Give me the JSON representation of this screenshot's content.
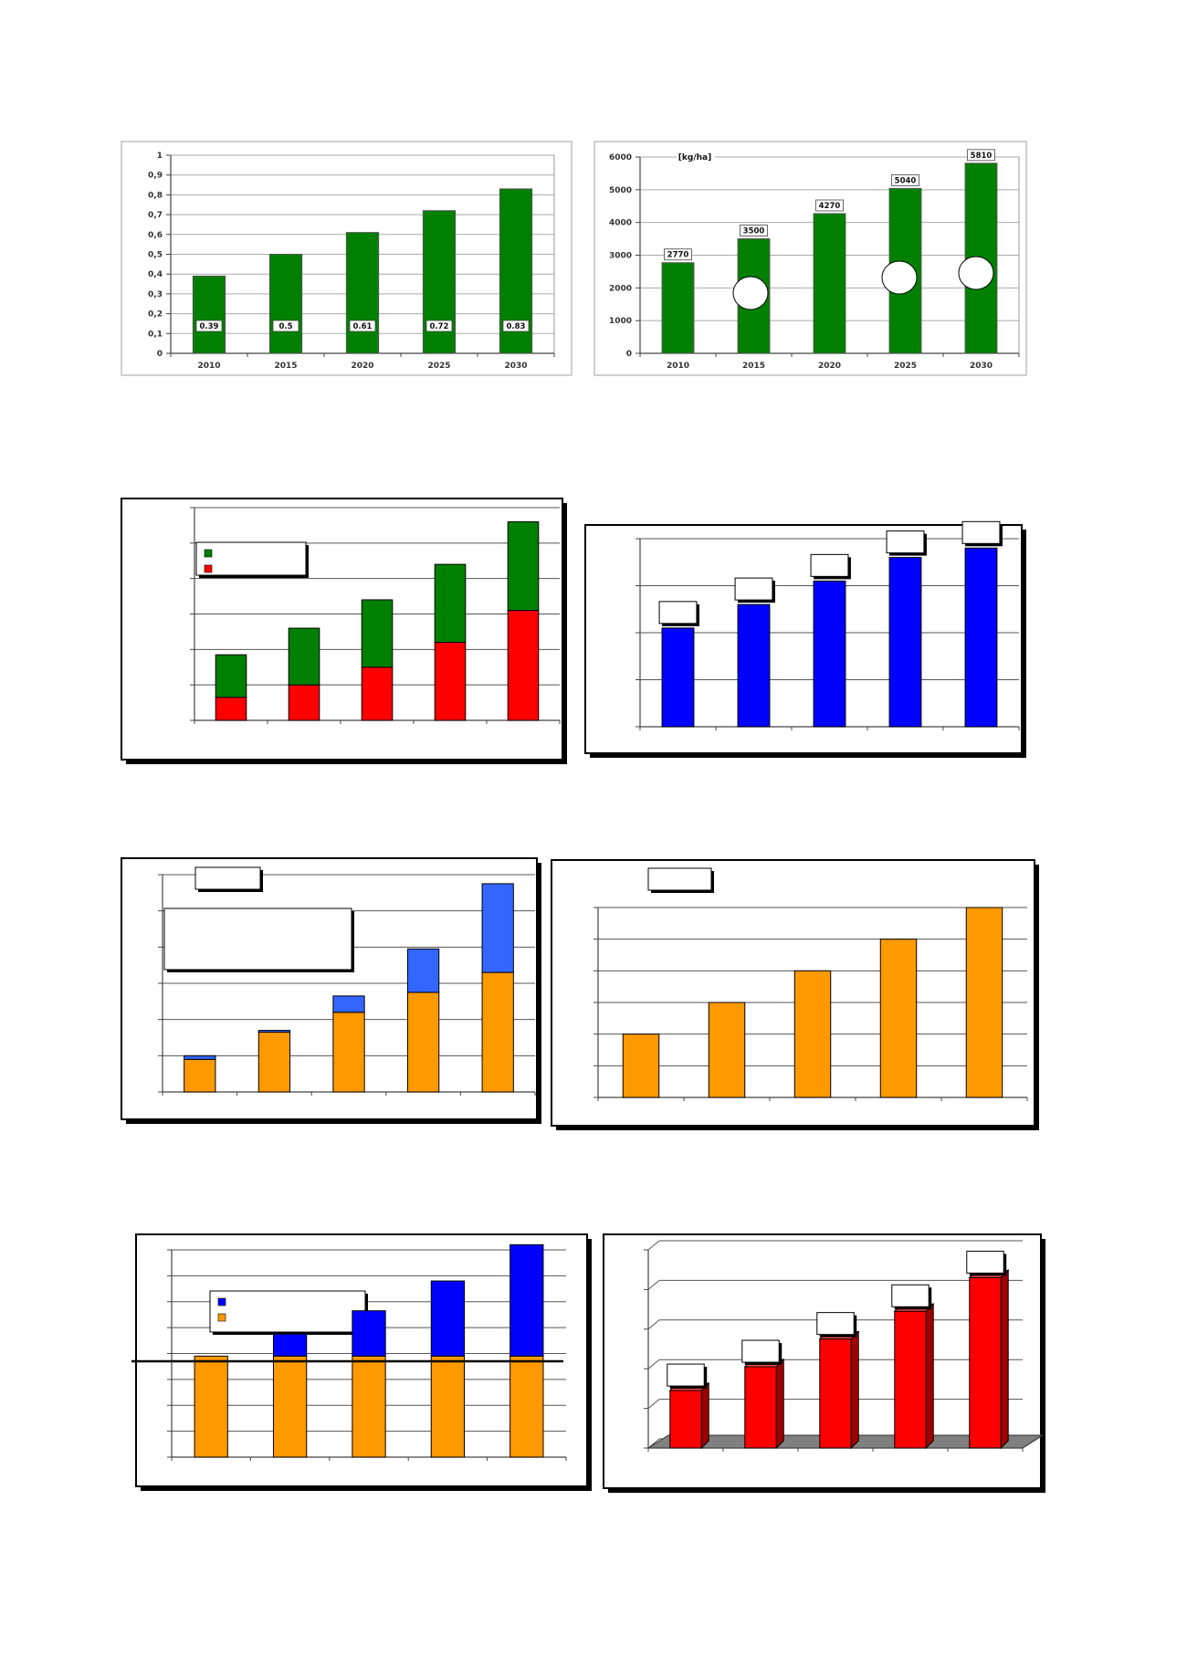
{
  "chart_data": [
    {
      "type": "bar",
      "categories": [
        "2010",
        "2015",
        "2020",
        "2025",
        "2030"
      ],
      "values": [
        0.39,
        0.5,
        0.61,
        0.72,
        0.83
      ],
      "data_labels": [
        "0.39",
        "0.5",
        "0.61",
        "0.72",
        "0.83"
      ],
      "y_ticks": [
        "0",
        "0,1",
        "0,2",
        "0,3",
        "0,4",
        "0,5",
        "0,6",
        "0,7",
        "0,8",
        "0,9",
        "1"
      ],
      "ylim": [
        0,
        1
      ],
      "grid": true,
      "colors": {
        "bar": "#008000"
      }
    },
    {
      "type": "bar",
      "categories": [
        "2010",
        "2015",
        "2020",
        "2025",
        "2030"
      ],
      "values": [
        2770,
        3500,
        4270,
        5040,
        5810
      ],
      "data_labels": [
        "2770",
        "3500",
        "4270",
        "5040",
        "5810"
      ],
      "unit_label": "[kg/ha]",
      "y_ticks": [
        "0",
        "1000",
        "2000",
        "3000",
        "4000",
        "5000",
        "6000"
      ],
      "ylim": [
        0,
        6000
      ],
      "grid": true,
      "colors": {
        "bar": "#008000"
      }
    },
    {
      "type": "bar",
      "stacked": true,
      "categories": [
        "",
        "",
        "",
        "",
        ""
      ],
      "ylim": [
        0,
        6
      ],
      "series": [
        {
          "values": [
            0.65,
            1.0,
            1.5,
            2.2,
            3.1
          ],
          "color": "#ff0000"
        },
        {
          "values": [
            1.2,
            1.6,
            1.9,
            2.2,
            2.5
          ],
          "color": "#008000"
        }
      ],
      "legend": "top-left",
      "grid": true
    },
    {
      "type": "bar",
      "categories": [
        "",
        "",
        "",
        "",
        ""
      ],
      "values": [
        2.1,
        2.6,
        3.1,
        3.6,
        3.8
      ],
      "ylim": [
        0,
        4
      ],
      "grid": true,
      "colors": {
        "bar": "#0000ff"
      }
    },
    {
      "type": "bar",
      "stacked": true,
      "categories": [
        "",
        "",
        "",
        "",
        ""
      ],
      "ylim": [
        0,
        6
      ],
      "series": [
        {
          "values": [
            0.9,
            1.65,
            2.2,
            2.75,
            3.3
          ],
          "color": "#ff9900"
        },
        {
          "values": [
            0.1,
            0.05,
            0.45,
            1.2,
            2.45
          ],
          "color": "#3366ff"
        }
      ],
      "legend": "top-left",
      "grid": true
    },
    {
      "type": "bar",
      "categories": [
        "",
        "",
        "",
        "",
        ""
      ],
      "values": [
        2,
        3,
        4,
        5,
        6
      ],
      "ylim": [
        0,
        6
      ],
      "grid": true,
      "colors": {
        "bar": "#ff9900"
      }
    },
    {
      "type": "bar",
      "stacked": true,
      "categories": [
        "",
        "",
        "",
        "",
        ""
      ],
      "ylim": [
        0,
        8
      ],
      "series": [
        {
          "values": [
            3.9,
            3.9,
            3.9,
            3.9,
            3.9
          ],
          "color": "#ff9900"
        },
        {
          "values": [
            0,
            0.85,
            1.75,
            2.9,
            4.3
          ],
          "color": "#0000ff"
        }
      ],
      "legend": "top-left",
      "grid": true
    },
    {
      "type": "bar",
      "categories": [
        "",
        "",
        "",
        "",
        ""
      ],
      "values": [
        1.45,
        2.05,
        2.75,
        3.45,
        4.3
      ],
      "ylim": [
        0,
        5
      ],
      "grid": true,
      "colors": {
        "bar": "#ff0000"
      }
    }
  ]
}
